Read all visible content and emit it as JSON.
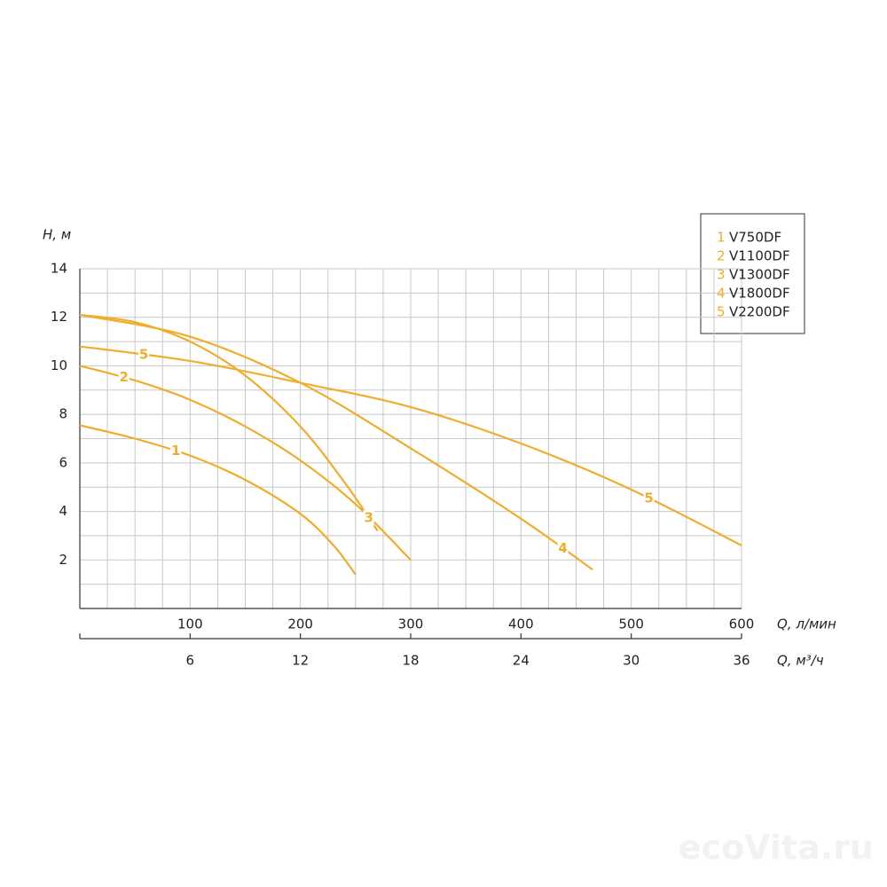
{
  "chart_data": {
    "type": "line",
    "y_label": "H, м",
    "x_label": "Q, л/мин",
    "x2_label": "Q, м³/ч",
    "xlim": [
      0,
      600
    ],
    "xticks": [
      100,
      200,
      300,
      400,
      500,
      600
    ],
    "x2lim": [
      0,
      36
    ],
    "x2ticks": [
      6,
      12,
      18,
      24,
      30,
      36
    ],
    "ylim": [
      0,
      14
    ],
    "yticks": [
      2,
      4,
      6,
      8,
      10,
      12,
      14
    ],
    "grid": {
      "x_step": 25,
      "y_step": 1
    },
    "color": "#f0ad2c",
    "series": [
      {
        "label": "1",
        "name": "V750DF",
        "x": [
          0,
          50,
          100,
          150,
          200,
          230,
          250
        ],
        "values": [
          7.55,
          7.0,
          6.3,
          5.3,
          3.9,
          2.6,
          1.4
        ]
      },
      {
        "label": "2",
        "name": "V1100DF",
        "x": [
          0,
          50,
          100,
          150,
          200,
          250,
          300
        ],
        "values": [
          10.0,
          9.4,
          8.6,
          7.5,
          6.1,
          4.3,
          2.0
        ]
      },
      {
        "label": "3",
        "name": "V1300DF",
        "x": [
          0,
          50,
          100,
          150,
          200,
          240,
          270
        ],
        "values": [
          12.1,
          11.8,
          11.0,
          9.6,
          7.5,
          5.2,
          3.2
        ]
      },
      {
        "label": "4",
        "name": "V1800DF",
        "x": [
          0,
          100,
          200,
          300,
          400,
          465
        ],
        "values": [
          12.1,
          11.2,
          9.3,
          6.6,
          3.7,
          1.6
        ]
      },
      {
        "label": "5",
        "name": "V2200DF",
        "x": [
          0,
          100,
          200,
          300,
          400,
          500,
          600
        ],
        "values": [
          10.8,
          10.2,
          9.3,
          8.3,
          6.8,
          4.9,
          2.6
        ]
      }
    ],
    "watermark": "ecoVita.ru"
  }
}
